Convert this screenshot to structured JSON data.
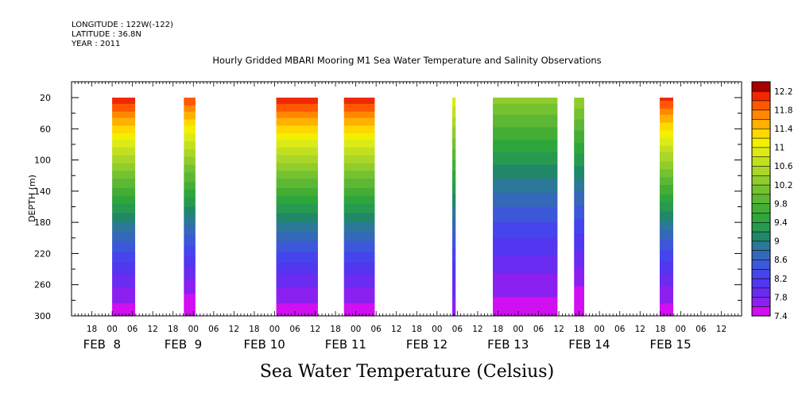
{
  "header": {
    "longitude": "LONGITUDE : 122W(-122)",
    "latitude": "LATITUDE : 36.8N",
    "year": "YEAR : 2011"
  },
  "chart_data": {
    "type": "heatmap",
    "title": "Hourly Gridded MBARI Mooring M1 Sea Water Temperature and Salinity Observations",
    "subtitle": "Sea Water Temperature (Celsius)",
    "ylabel": "DEPTH (m)",
    "x_unit": "hours since 2011-02-07T12:00",
    "x_range": [
      0,
      198
    ],
    "y_range": [
      20,
      300
    ],
    "y_inverted": true,
    "y_ticks": [
      20,
      60,
      100,
      140,
      180,
      220,
      260,
      300
    ],
    "x_hour_ticks": [
      {
        "x": 6,
        "label": "18"
      },
      {
        "x": 12,
        "label": "00"
      },
      {
        "x": 18,
        "label": "06"
      },
      {
        "x": 24,
        "label": "12"
      },
      {
        "x": 30,
        "label": "18"
      },
      {
        "x": 36,
        "label": "00"
      },
      {
        "x": 42,
        "label": "06"
      },
      {
        "x": 48,
        "label": "12"
      },
      {
        "x": 54,
        "label": "18"
      },
      {
        "x": 60,
        "label": "00"
      },
      {
        "x": 66,
        "label": "06"
      },
      {
        "x": 72,
        "label": "12"
      },
      {
        "x": 78,
        "label": "18"
      },
      {
        "x": 84,
        "label": "00"
      },
      {
        "x": 90,
        "label": "06"
      },
      {
        "x": 96,
        "label": "12"
      },
      {
        "x": 102,
        "label": "18"
      },
      {
        "x": 108,
        "label": "00"
      },
      {
        "x": 114,
        "label": "06"
      },
      {
        "x": 120,
        "label": "12"
      },
      {
        "x": 126,
        "label": "18"
      },
      {
        "x": 132,
        "label": "00"
      },
      {
        "x": 138,
        "label": "06"
      },
      {
        "x": 144,
        "label": "12"
      },
      {
        "x": 150,
        "label": "18"
      },
      {
        "x": 156,
        "label": "00"
      },
      {
        "x": 162,
        "label": "06"
      },
      {
        "x": 168,
        "label": "12"
      },
      {
        "x": 174,
        "label": "18"
      },
      {
        "x": 180,
        "label": "00"
      },
      {
        "x": 186,
        "label": "06"
      },
      {
        "x": 192,
        "label": "12"
      }
    ],
    "x_day_labels": [
      {
        "x": 9,
        "label": "FEB  8"
      },
      {
        "x": 33,
        "label": "FEB  9"
      },
      {
        "x": 57,
        "label": "FEB 10"
      },
      {
        "x": 81,
        "label": "FEB 11"
      },
      {
        "x": 105,
        "label": "FEB 12"
      },
      {
        "x": 129,
        "label": "FEB 13"
      },
      {
        "x": 153,
        "label": "FEB 14"
      },
      {
        "x": 177,
        "label": "FEB 15"
      }
    ],
    "colorbar": {
      "levels": [
        7.4,
        7.6,
        7.8,
        8.0,
        8.2,
        8.4,
        8.6,
        8.8,
        9.0,
        9.2,
        9.4,
        9.6,
        9.8,
        10.0,
        10.2,
        10.4,
        10.6,
        10.8,
        11.0,
        11.2,
        11.4,
        11.6,
        11.8,
        12.0,
        12.2,
        12.4
      ],
      "labels": [
        "7.4",
        "7.8",
        "8.2",
        "8.6",
        "9",
        "9.4",
        "9.8",
        "10.2",
        "10.6",
        "11",
        "11.4",
        "11.8",
        "12.2"
      ],
      "colors": [
        "#d010f0",
        "#8c20f0",
        "#6a2cf0",
        "#5236f0",
        "#4644ec",
        "#3c58d8",
        "#3468b8",
        "#2c7898",
        "#208868",
        "#289a50",
        "#2ea63c",
        "#44ae34",
        "#5cb834",
        "#74c230",
        "#90cc2c",
        "#aad628",
        "#c2e020",
        "#dcea18",
        "#f2f000",
        "#ffd800",
        "#ffb000",
        "#ff8800",
        "#ff5800",
        "#f02800",
        "#a80000"
      ]
    },
    "data_segments": [
      {
        "start": 12.0,
        "end": 18.8,
        "surface_temp": 12.2,
        "bottom_temp": 7.5
      },
      {
        "start": 33.2,
        "end": 36.6,
        "surface_temp": 12.0,
        "bottom_temp": 7.4
      },
      {
        "start": 60.5,
        "end": 72.8,
        "surface_temp": 12.2,
        "bottom_temp": 7.5
      },
      {
        "start": 80.5,
        "end": 89.6,
        "surface_temp": 12.2,
        "bottom_temp": 7.5
      },
      {
        "start": 112.5,
        "end": 113.5,
        "surface_temp": 11.0,
        "bottom_temp": 7.7
      },
      {
        "start": 124.5,
        "end": 143.6,
        "surface_temp": 10.3,
        "bottom_temp": 7.5
      },
      {
        "start": 148.5,
        "end": 151.5,
        "surface_temp": 10.4,
        "bottom_temp": 7.4
      },
      {
        "start": 173.8,
        "end": 177.8,
        "surface_temp": 12.1,
        "bottom_temp": 7.5
      }
    ]
  }
}
